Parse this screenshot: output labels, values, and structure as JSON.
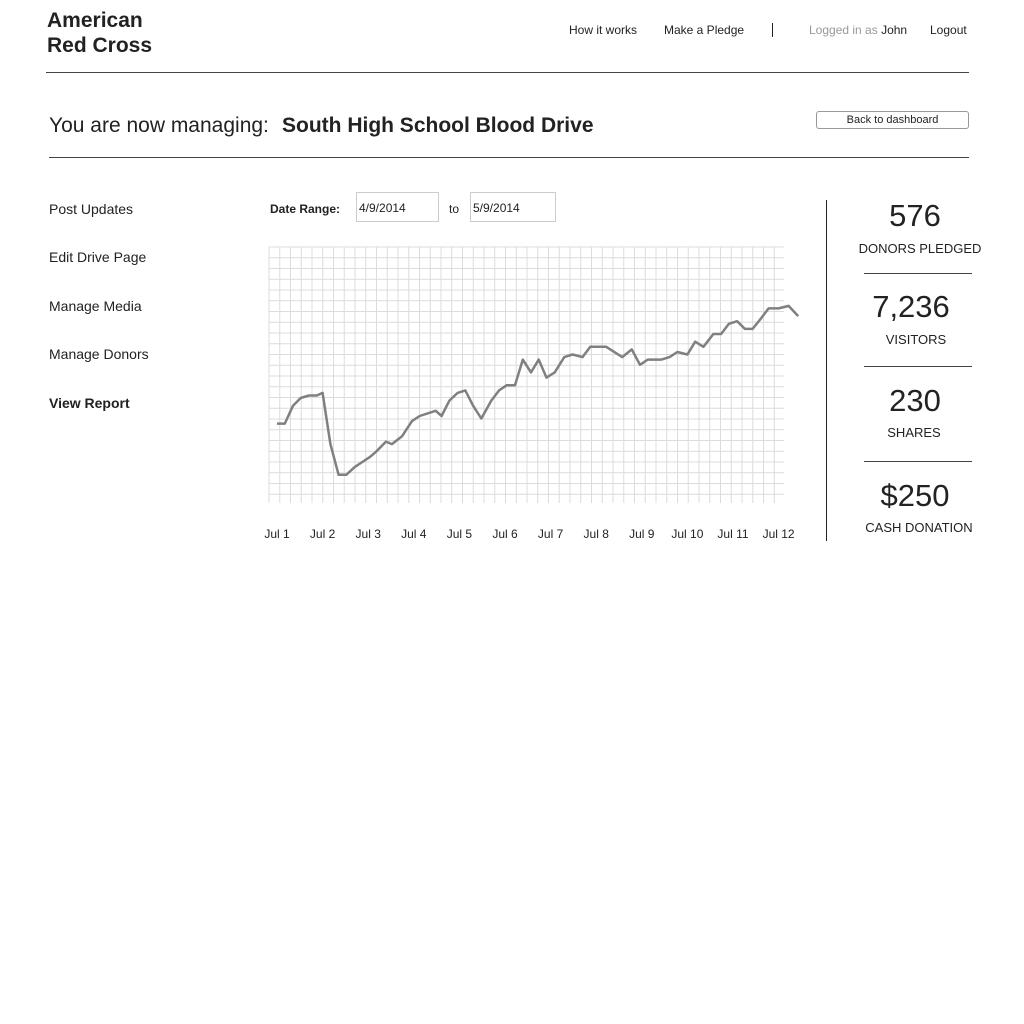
{
  "header": {
    "logo_line1": "American",
    "logo_line2": "Red Cross",
    "nav": {
      "how_it_works": "How it works",
      "make_pledge": "Make a Pledge"
    },
    "logged_prefix": "Logged in as",
    "user": "John",
    "logout": "Logout"
  },
  "manage": {
    "prefix": "You are now managing:",
    "drive_name": "South High School Blood Drive",
    "back_button": "Back to dashboard"
  },
  "sidebar": {
    "items": [
      {
        "label": "Post Updates"
      },
      {
        "label": "Edit Drive Page"
      },
      {
        "label": "Manage Media"
      },
      {
        "label": "Manage Donors"
      },
      {
        "label": "View Report",
        "active": true
      }
    ]
  },
  "date_range": {
    "label": "Date Range:",
    "from": "4/9/2014",
    "to_label": "to",
    "to": "5/9/2014"
  },
  "chart_data": {
    "type": "line",
    "categories": [
      "Jul 1",
      "Jul 2",
      "Jul 3",
      "Jul 4",
      "Jul 5",
      "Jul 6",
      "Jul 7",
      "Jul 8",
      "Jul 9",
      "Jul 10",
      "Jul 11",
      "Jul 12"
    ],
    "ylim": [
      0,
      100
    ],
    "grid": true,
    "line_color": "#808080",
    "series": [
      {
        "values": [
          [
            0,
            31
          ],
          [
            0.17,
            31
          ],
          [
            0.35,
            38
          ],
          [
            0.52,
            41
          ],
          [
            0.7,
            42
          ],
          [
            0.87,
            42
          ],
          [
            1.0,
            43
          ],
          [
            1.17,
            23
          ],
          [
            1.35,
            11
          ],
          [
            1.52,
            11
          ],
          [
            1.7,
            14
          ],
          [
            1.87,
            16
          ],
          [
            2.04,
            18
          ],
          [
            2.17,
            20
          ],
          [
            2.39,
            24
          ],
          [
            2.52,
            23
          ],
          [
            2.74,
            26
          ],
          [
            2.96,
            32
          ],
          [
            3.13,
            34
          ],
          [
            3.3,
            35
          ],
          [
            3.48,
            36
          ],
          [
            3.61,
            34
          ],
          [
            3.78,
            40
          ],
          [
            3.96,
            43
          ],
          [
            4.13,
            44
          ],
          [
            4.3,
            38
          ],
          [
            4.48,
            33
          ],
          [
            4.7,
            40
          ],
          [
            4.87,
            44
          ],
          [
            5.04,
            46
          ],
          [
            5.22,
            46
          ],
          [
            5.39,
            56
          ],
          [
            5.57,
            51
          ],
          [
            5.74,
            56
          ],
          [
            5.91,
            49
          ],
          [
            6.09,
            51
          ],
          [
            6.3,
            57
          ],
          [
            6.48,
            58
          ],
          [
            6.7,
            57
          ],
          [
            6.87,
            61
          ],
          [
            7.04,
            61
          ],
          [
            7.22,
            61
          ],
          [
            7.57,
            57
          ],
          [
            7.78,
            60
          ],
          [
            7.96,
            54
          ],
          [
            8.13,
            56
          ],
          [
            8.43,
            56
          ],
          [
            8.61,
            57
          ],
          [
            8.78,
            59
          ],
          [
            9.0,
            58
          ],
          [
            9.17,
            63
          ],
          [
            9.35,
            61
          ],
          [
            9.57,
            66
          ],
          [
            9.74,
            66
          ],
          [
            9.91,
            70
          ],
          [
            10.09,
            71
          ],
          [
            10.26,
            68
          ],
          [
            10.43,
            68
          ],
          [
            10.61,
            72
          ],
          [
            10.78,
            76
          ],
          [
            11.0,
            76
          ],
          [
            11.22,
            77
          ],
          [
            11.43,
            73
          ]
        ]
      }
    ]
  },
  "stats": [
    {
      "value": "576",
      "label": "DONORS PLEDGED"
    },
    {
      "value": "7,236",
      "label": "VISITORS"
    },
    {
      "value": "230",
      "label": "SHARES"
    },
    {
      "value": "$250",
      "label": "CASH DONATION"
    }
  ]
}
